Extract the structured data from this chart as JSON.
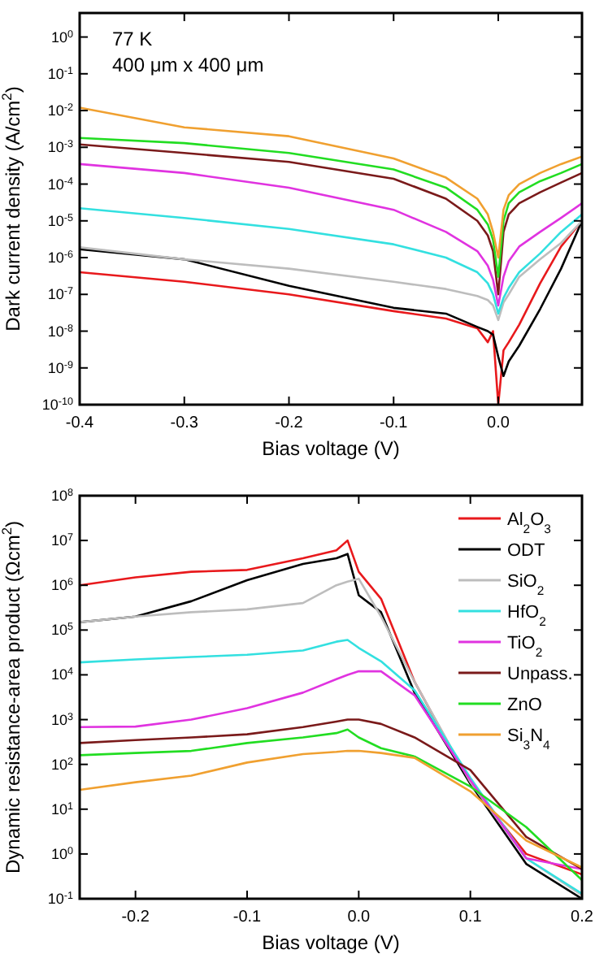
{
  "chart_data": [
    {
      "type": "line",
      "xlabel": "Bias voltage (V)",
      "ylabel": "Dark current density (A/cm$^{2}$)",
      "annotations": [
        "77 K",
        "400 μm x 400 μm"
      ],
      "log": "y",
      "xlim": [
        -0.4,
        0.08
      ],
      "ylim": [
        1e-10,
        4.5
      ],
      "xticks": [
        -0.4,
        -0.3,
        -0.2,
        -0.1,
        {
          "value": 0,
          "label": "0.0"
        }
      ],
      "yticks": [
        {
          "value": 1e-10,
          "label": "10$^{-10}$"
        },
        {
          "value": 1e-09,
          "label": "10$^{-9}$"
        },
        {
          "value": 1e-08,
          "label": "10$^{-8}$"
        },
        {
          "value": 1e-07,
          "label": "10$^{-7}$"
        },
        {
          "value": 1e-06,
          "label": "10$^{-6}$"
        },
        {
          "value": 1e-05,
          "label": "10$^{-5}$"
        },
        {
          "value": 0.0001,
          "label": "10$^{-4}$"
        },
        {
          "value": 0.001,
          "label": "10$^{-3}$"
        },
        {
          "value": 0.01,
          "label": "10$^{-2}$"
        },
        {
          "value": 0.1,
          "label": "10$^{-1}$"
        },
        {
          "value": 1,
          "label": "10$^{0}$"
        }
      ],
      "x": [
        -0.4,
        -0.3,
        -0.2,
        -0.1,
        -0.05,
        -0.02,
        -0.01,
        -0.005,
        0,
        0.005,
        0.01,
        0.02,
        0.04,
        0.06,
        0.08
      ],
      "series": [
        {
          "color": "#e8191c",
          "values": [
            4e-07,
            2.2e-07,
            1e-07,
            3.5e-08,
            2.2e-08,
            1.2e-08,
            5e-09,
            1e-08,
            1e-10,
            3e-09,
            5e-09,
            1.5e-08,
            2e-07,
            2e-06,
            1e-05
          ]
        },
        {
          "color": "#000000",
          "values": [
            1.7e-06,
            9e-07,
            1.7e-07,
            4.3e-08,
            3e-08,
            1.3e-08,
            1e-08,
            8e-09,
            2e-09,
            6e-10,
            1.5e-09,
            4e-09,
            4e-08,
            5e-07,
            1e-05
          ]
        },
        {
          "color": "#bdbdbd",
          "values": [
            1.9e-06,
            9e-07,
            5e-07,
            2.2e-07,
            1.4e-07,
            9e-08,
            7e-08,
            5e-08,
            2e-08,
            6e-08,
            1e-07,
            3e-07,
            9e-07,
            2.5e-06,
            1e-05
          ]
        },
        {
          "color": "#33e0e0",
          "values": [
            2.2e-05,
            1.2e-05,
            6e-06,
            2.3e-06,
            1e-06,
            4e-07,
            2e-07,
            1e-07,
            3e-08,
            8e-08,
            1.5e-07,
            4e-07,
            1.3e-06,
            5e-06,
            1.5e-05
          ]
        },
        {
          "color": "#e033e0",
          "values": [
            0.00035,
            0.0002,
            8e-05,
            2e-05,
            5e-06,
            1.5e-06,
            6e-07,
            2.5e-07,
            5e-08,
            3e-07,
            8e-07,
            2e-06,
            5e-06,
            1.2e-05,
            3e-05
          ]
        },
        {
          "color": "#7a1a1a",
          "values": [
            0.0012,
            0.0007,
            0.0004,
            0.00014,
            4e-05,
            1e-05,
            4e-06,
            1.5e-06,
            1e-07,
            5e-06,
            1.5e-05,
            3e-05,
            6e-05,
            0.00011,
            0.0002
          ]
        },
        {
          "color": "#22dd22",
          "values": [
            0.0018,
            0.0013,
            0.0007,
            0.00025,
            8e-05,
            2e-05,
            8e-06,
            3e-06,
            3e-07,
            1e-05,
            3e-05,
            6e-05,
            0.00012,
            0.0002,
            0.00035
          ]
        },
        {
          "color": "#f0a030",
          "values": [
            0.012,
            0.0035,
            0.002,
            0.0005,
            0.00015,
            4e-05,
            1.5e-05,
            5e-06,
            1e-06,
            2e-05,
            5e-05,
            0.0001,
            0.0002,
            0.00035,
            0.00056
          ]
        }
      ]
    },
    {
      "type": "line",
      "xlabel": "Bias voltage (V)",
      "ylabel": "Dynamic resistance-area product (Ωcm$^{2}$)",
      "log": "y",
      "legend": "top right",
      "xlim": [
        -0.25,
        0.2
      ],
      "ylim": [
        0.1,
        100000000.0
      ],
      "xticks": [
        -0.2,
        -0.1,
        {
          "value": 0,
          "label": "0.0"
        },
        0.1,
        0.2
      ],
      "yticks": [
        {
          "value": 0.1,
          "label": "10$^{-1}$"
        },
        {
          "value": 1,
          "label": "10$^{0}$"
        },
        {
          "value": 10,
          "label": "10$^{1}$"
        },
        {
          "value": 100,
          "label": "10$^{2}$"
        },
        {
          "value": 1000,
          "label": "10$^{3}$"
        },
        {
          "value": 10000.0,
          "label": "10$^{4}$"
        },
        {
          "value": 100000.0,
          "label": "10$^{5}$"
        },
        {
          "value": 1000000.0,
          "label": "10$^{6}$"
        },
        {
          "value": 10000000.0,
          "label": "10$^{7}$"
        },
        {
          "value": 100000000.0,
          "label": "10$^{8}$"
        }
      ],
      "x": [
        -0.25,
        -0.2,
        -0.15,
        -0.1,
        -0.05,
        -0.02,
        -0.01,
        0,
        0.02,
        0.05,
        0.1,
        0.15,
        0.2
      ],
      "series": [
        {
          "name": "Al$_{2}$O$_{3}$",
          "color": "#e8191c",
          "values": [
            1000000.0,
            1500000.0,
            2000000.0,
            2200000.0,
            4000000.0,
            6000000.0,
            10000000.0,
            2000000.0,
            500000.0,
            7000.0,
            37,
            1,
            0.35
          ]
        },
        {
          "name": "ODT",
          "color": "#000000",
          "values": [
            150000.0,
            200000.0,
            440000.0,
            1300000.0,
            3000000.0,
            4000000.0,
            5000000.0,
            600000.0,
            250000.0,
            4000.0,
            37,
            0.6,
            0.1
          ]
        },
        {
          "name": "SiO$_{2}$",
          "color": "#bdbdbd",
          "values": [
            150000.0,
            200000.0,
            250000.0,
            290000.0,
            400000.0,
            1000000.0,
            1200000.0,
            1400000.0,
            200000.0,
            7000.0,
            40,
            0.8,
            0.12
          ]
        },
        {
          "name": "HfO$_{2}$",
          "color": "#33e0e0",
          "values": [
            19000.0,
            22000.0,
            25000.0,
            28000.0,
            35000.0,
            55000.0,
            60000.0,
            40000.0,
            20000.0,
            4500.0,
            50,
            0.8,
            0.13
          ]
        },
        {
          "name": "TiO$_{2}$",
          "color": "#e033e0",
          "values": [
            680,
            700,
            1000,
            1800,
            4000.0,
            8000.0,
            10000.0,
            12000.0,
            12000.0,
            3500.0,
            44,
            0.8,
            0.46
          ]
        },
        {
          "name": "Unpass.",
          "color": "#7a1a1a",
          "values": [
            300,
            350,
            400,
            470,
            680,
            900,
            1000.0,
            1000.0,
            800,
            400,
            75,
            2.4,
            0.46
          ]
        },
        {
          "name": "ZnO",
          "color": "#22dd22",
          "values": [
            160,
            180,
            200,
            300,
            400,
            500,
            600,
            400,
            230,
            150,
            32,
            4,
            0.26
          ]
        },
        {
          "name": "Si$_{3}$N$_{4}$",
          "color": "#f0a030",
          "values": [
            27,
            40,
            56,
            110,
            170,
            190,
            200,
            200,
            180,
            140,
            25,
            2,
            0.5
          ]
        }
      ]
    }
  ]
}
